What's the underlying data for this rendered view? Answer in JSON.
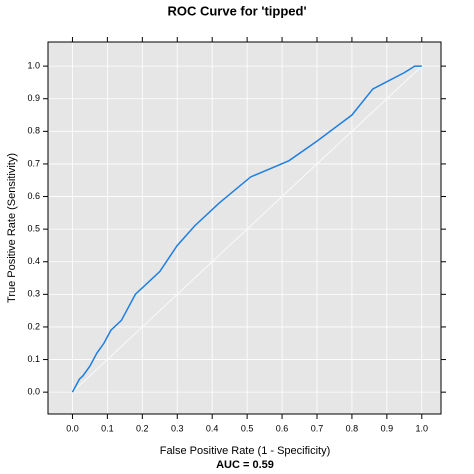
{
  "chart_data": {
    "type": "line",
    "title": "ROC Curve for 'tipped'",
    "x_label": "False Positive Rate (1 - Specificity)",
    "y_label": "True Positive Rate (Sensitivity)",
    "annotation": "AUC =  0.59",
    "x": [
      0,
      0.01,
      0.02,
      0.03,
      0.05,
      0.07,
      0.09,
      0.11,
      0.14,
      0.18,
      0.25,
      0.3,
      0.35,
      0.42,
      0.51,
      0.62,
      0.7,
      0.8,
      0.86,
      0.95,
      0.98,
      1.0
    ],
    "series": [
      {
        "name": "ROC",
        "color": "#1f7fe0",
        "values": [
          0,
          0.02,
          0.04,
          0.05,
          0.08,
          0.12,
          0.15,
          0.19,
          0.22,
          0.3,
          0.37,
          0.45,
          0.51,
          0.58,
          0.66,
          0.71,
          0.77,
          0.85,
          0.93,
          0.98,
          1.0,
          1.0
        ]
      }
    ],
    "xlim": [
      -0.07,
      1.055
    ],
    "ylim": [
      -0.067,
      1.074
    ],
    "xticks": [
      {
        "value": 0,
        "label": "0.0"
      },
      0.1,
      0.2,
      0.3,
      0.4,
      0.5,
      0.6,
      0.7,
      0.8,
      0.9,
      {
        "value": 1,
        "label": "1.0"
      }
    ],
    "yticks": [
      {
        "value": 0,
        "label": "0.0"
      },
      0.1,
      0.2,
      0.3,
      0.4,
      0.5,
      0.6,
      0.7,
      0.8,
      0.9,
      {
        "value": 1,
        "label": "1.0"
      }
    ],
    "grid": true
  }
}
